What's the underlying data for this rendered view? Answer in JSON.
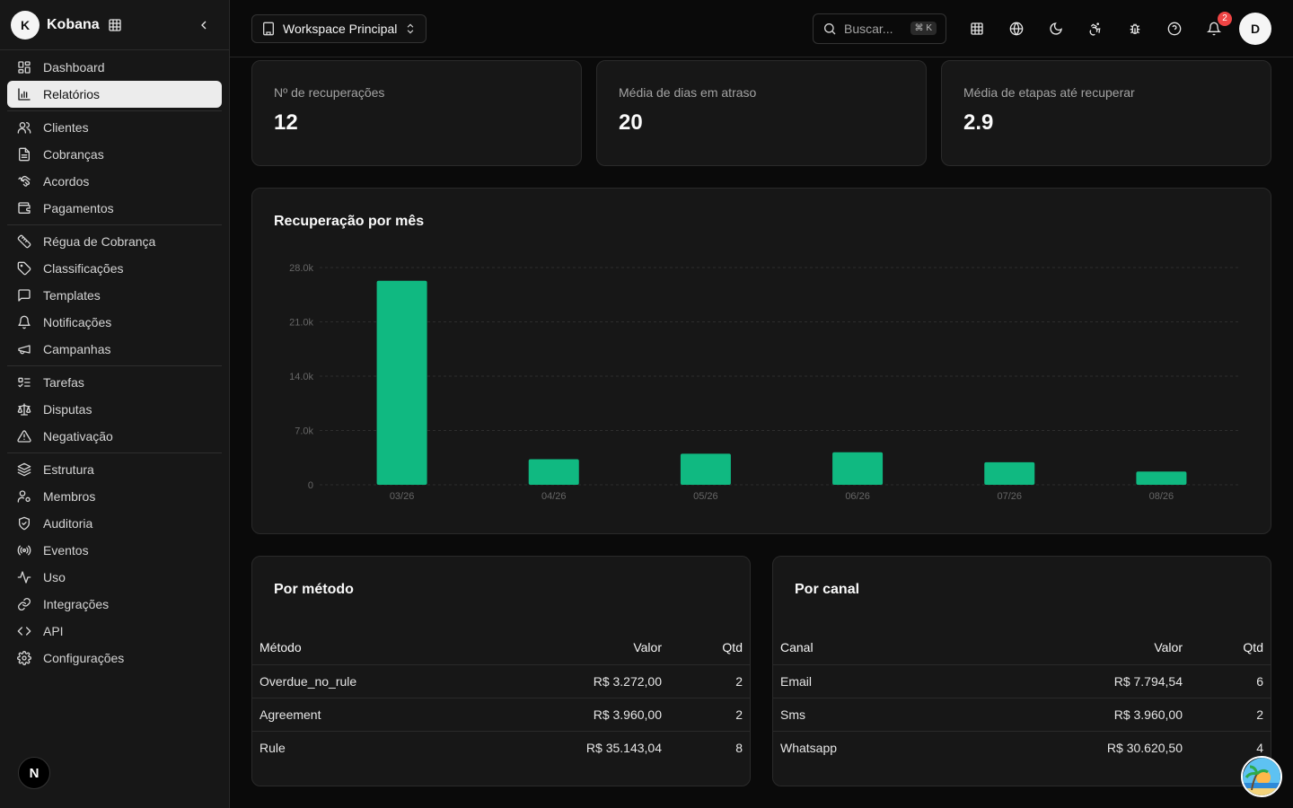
{
  "brand": {
    "initial": "K",
    "name": "Kobana"
  },
  "sidebar": {
    "items": [
      {
        "label": "Dashboard",
        "icon": "dashboard-icon"
      },
      {
        "label": "Relatórios",
        "icon": "bar-chart-icon",
        "active": true
      },
      {
        "label": "Clientes",
        "icon": "users-icon"
      },
      {
        "label": "Cobranças",
        "icon": "file-text-icon"
      },
      {
        "label": "Acordos",
        "icon": "handshake-icon"
      },
      {
        "label": "Pagamentos",
        "icon": "wallet-icon"
      },
      {
        "label": "Régua de Cobrança",
        "icon": "ruler-icon"
      },
      {
        "label": "Classificações",
        "icon": "tag-icon"
      },
      {
        "label": "Templates",
        "icon": "message-square-icon"
      },
      {
        "label": "Notificações",
        "icon": "bell-icon"
      },
      {
        "label": "Campanhas",
        "icon": "megaphone-icon"
      },
      {
        "label": "Tarefas",
        "icon": "list-todo-icon"
      },
      {
        "label": "Disputas",
        "icon": "scale-icon"
      },
      {
        "label": "Negativação",
        "icon": "alert-triangle-icon"
      },
      {
        "label": "Estrutura",
        "icon": "layers-icon"
      },
      {
        "label": "Membros",
        "icon": "user-cog-icon"
      },
      {
        "label": "Auditoria",
        "icon": "shield-check-icon"
      },
      {
        "label": "Eventos",
        "icon": "radio-icon"
      },
      {
        "label": "Uso",
        "icon": "activity-icon"
      },
      {
        "label": "Integrações",
        "icon": "link-icon"
      },
      {
        "label": "API",
        "icon": "code-icon"
      },
      {
        "label": "Configurações",
        "icon": "settings-icon"
      }
    ],
    "footer_badge": "N"
  },
  "topbar": {
    "workspace": "Workspace Principal",
    "search_placeholder": "Buscar...",
    "search_shortcut": "⌘ K",
    "notification_count": "2",
    "avatar_initial": "D"
  },
  "stats": [
    {
      "label": "Nº de recuperações",
      "value": "12"
    },
    {
      "label": "Média de dias em atraso",
      "value": "20"
    },
    {
      "label": "Média de etapas até recuperar",
      "value": "2.9"
    }
  ],
  "chart_title": "Recuperação por mês",
  "chart_data": {
    "type": "bar",
    "title": "Recuperação por mês",
    "categories": [
      "03/26",
      "04/26",
      "05/26",
      "06/26",
      "07/26",
      "08/26"
    ],
    "values": [
      26300,
      3300,
      4000,
      4200,
      2900,
      1700
    ],
    "ylim": [
      0,
      28000
    ],
    "yticks": [
      0,
      7000,
      14000,
      21000,
      28000
    ],
    "ytick_labels": [
      "0",
      "7.0k",
      "14.0k",
      "21.0k",
      "28.0k"
    ],
    "color": "#10b981",
    "grid": true
  },
  "by_method": {
    "title": "Por método",
    "headers": [
      "Método",
      "Valor",
      "Qtd"
    ],
    "rows": [
      [
        "Overdue_no_rule",
        "R$ 3.272,00",
        "2"
      ],
      [
        "Agreement",
        "R$ 3.960,00",
        "2"
      ],
      [
        "Rule",
        "R$ 35.143,04",
        "8"
      ]
    ]
  },
  "by_channel": {
    "title": "Por canal",
    "headers": [
      "Canal",
      "Valor",
      "Qtd"
    ],
    "rows": [
      [
        "Email",
        "R$ 7.794,54",
        "6"
      ],
      [
        "Sms",
        "R$ 3.960,00",
        "2"
      ],
      [
        "Whatsapp",
        "R$ 30.620,50",
        "4"
      ]
    ]
  }
}
